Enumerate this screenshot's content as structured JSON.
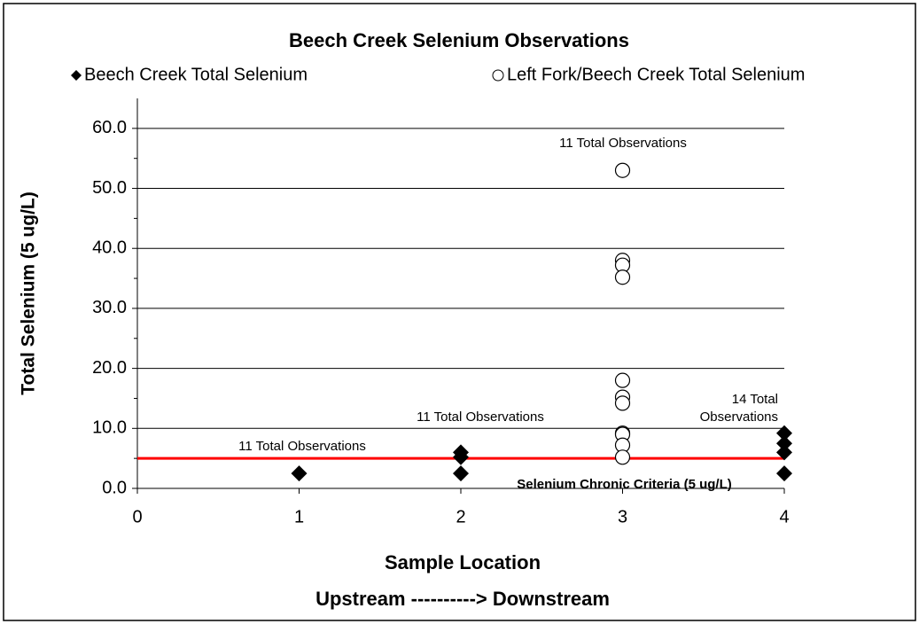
{
  "chart_data": {
    "type": "scatter",
    "title": "Beech Creek Selenium Observations",
    "xlabel": [
      "Sample Location",
      "Upstream ----------> Downstream"
    ],
    "ylabel": "Total Selenium (5 ug/L)",
    "xlim": [
      0,
      4
    ],
    "xticks": [
      0,
      1,
      2,
      3,
      4
    ],
    "ylim": [
      0,
      65
    ],
    "yticks": [
      {
        "value": 0,
        "label": "0.0"
      },
      {
        "value": 10,
        "label": "10.0"
      },
      {
        "value": 20,
        "label": "20.0"
      },
      {
        "value": 30,
        "label": "30.0"
      },
      {
        "value": 40,
        "label": "40.0"
      },
      {
        "value": 50,
        "label": "50.0"
      },
      {
        "value": 60,
        "label": "60.0"
      }
    ],
    "yticks_minor": [
      5,
      15,
      25,
      35,
      45,
      55
    ],
    "grid": true,
    "legend": "top",
    "series": [
      {
        "name": "Beech Creek Total Selenium",
        "marker": "diamond",
        "color": "#000000",
        "x": [
          1,
          2,
          2,
          2,
          4,
          4,
          4,
          4
        ],
        "values": [
          2.5,
          2.5,
          5.2,
          6.0,
          2.5,
          6.0,
          7.5,
          9.2
        ]
      },
      {
        "name": "Left Fork/Beech Creek Total Selenium",
        "marker": "circle",
        "color": "#000000",
        "x": [
          3,
          3,
          3,
          3,
          3,
          3,
          3,
          3,
          3,
          3,
          3
        ],
        "values": [
          53.0,
          38.0,
          37.2,
          35.2,
          18.0,
          15.2,
          14.2,
          9.2,
          9.0,
          7.2,
          5.2
        ]
      }
    ],
    "reference_line": {
      "value": 5,
      "label": "Selenium Chronic Criteria (5 ug/L)",
      "color": "#ff0000"
    },
    "annotations": [
      {
        "lines": [
          "11 Total Observations"
        ]
      },
      {
        "lines": [
          "11 Total Observations"
        ]
      },
      {
        "lines": [
          "11 Total Observations"
        ]
      },
      {
        "lines": [
          "14 Total",
          "Observations"
        ]
      }
    ]
  }
}
